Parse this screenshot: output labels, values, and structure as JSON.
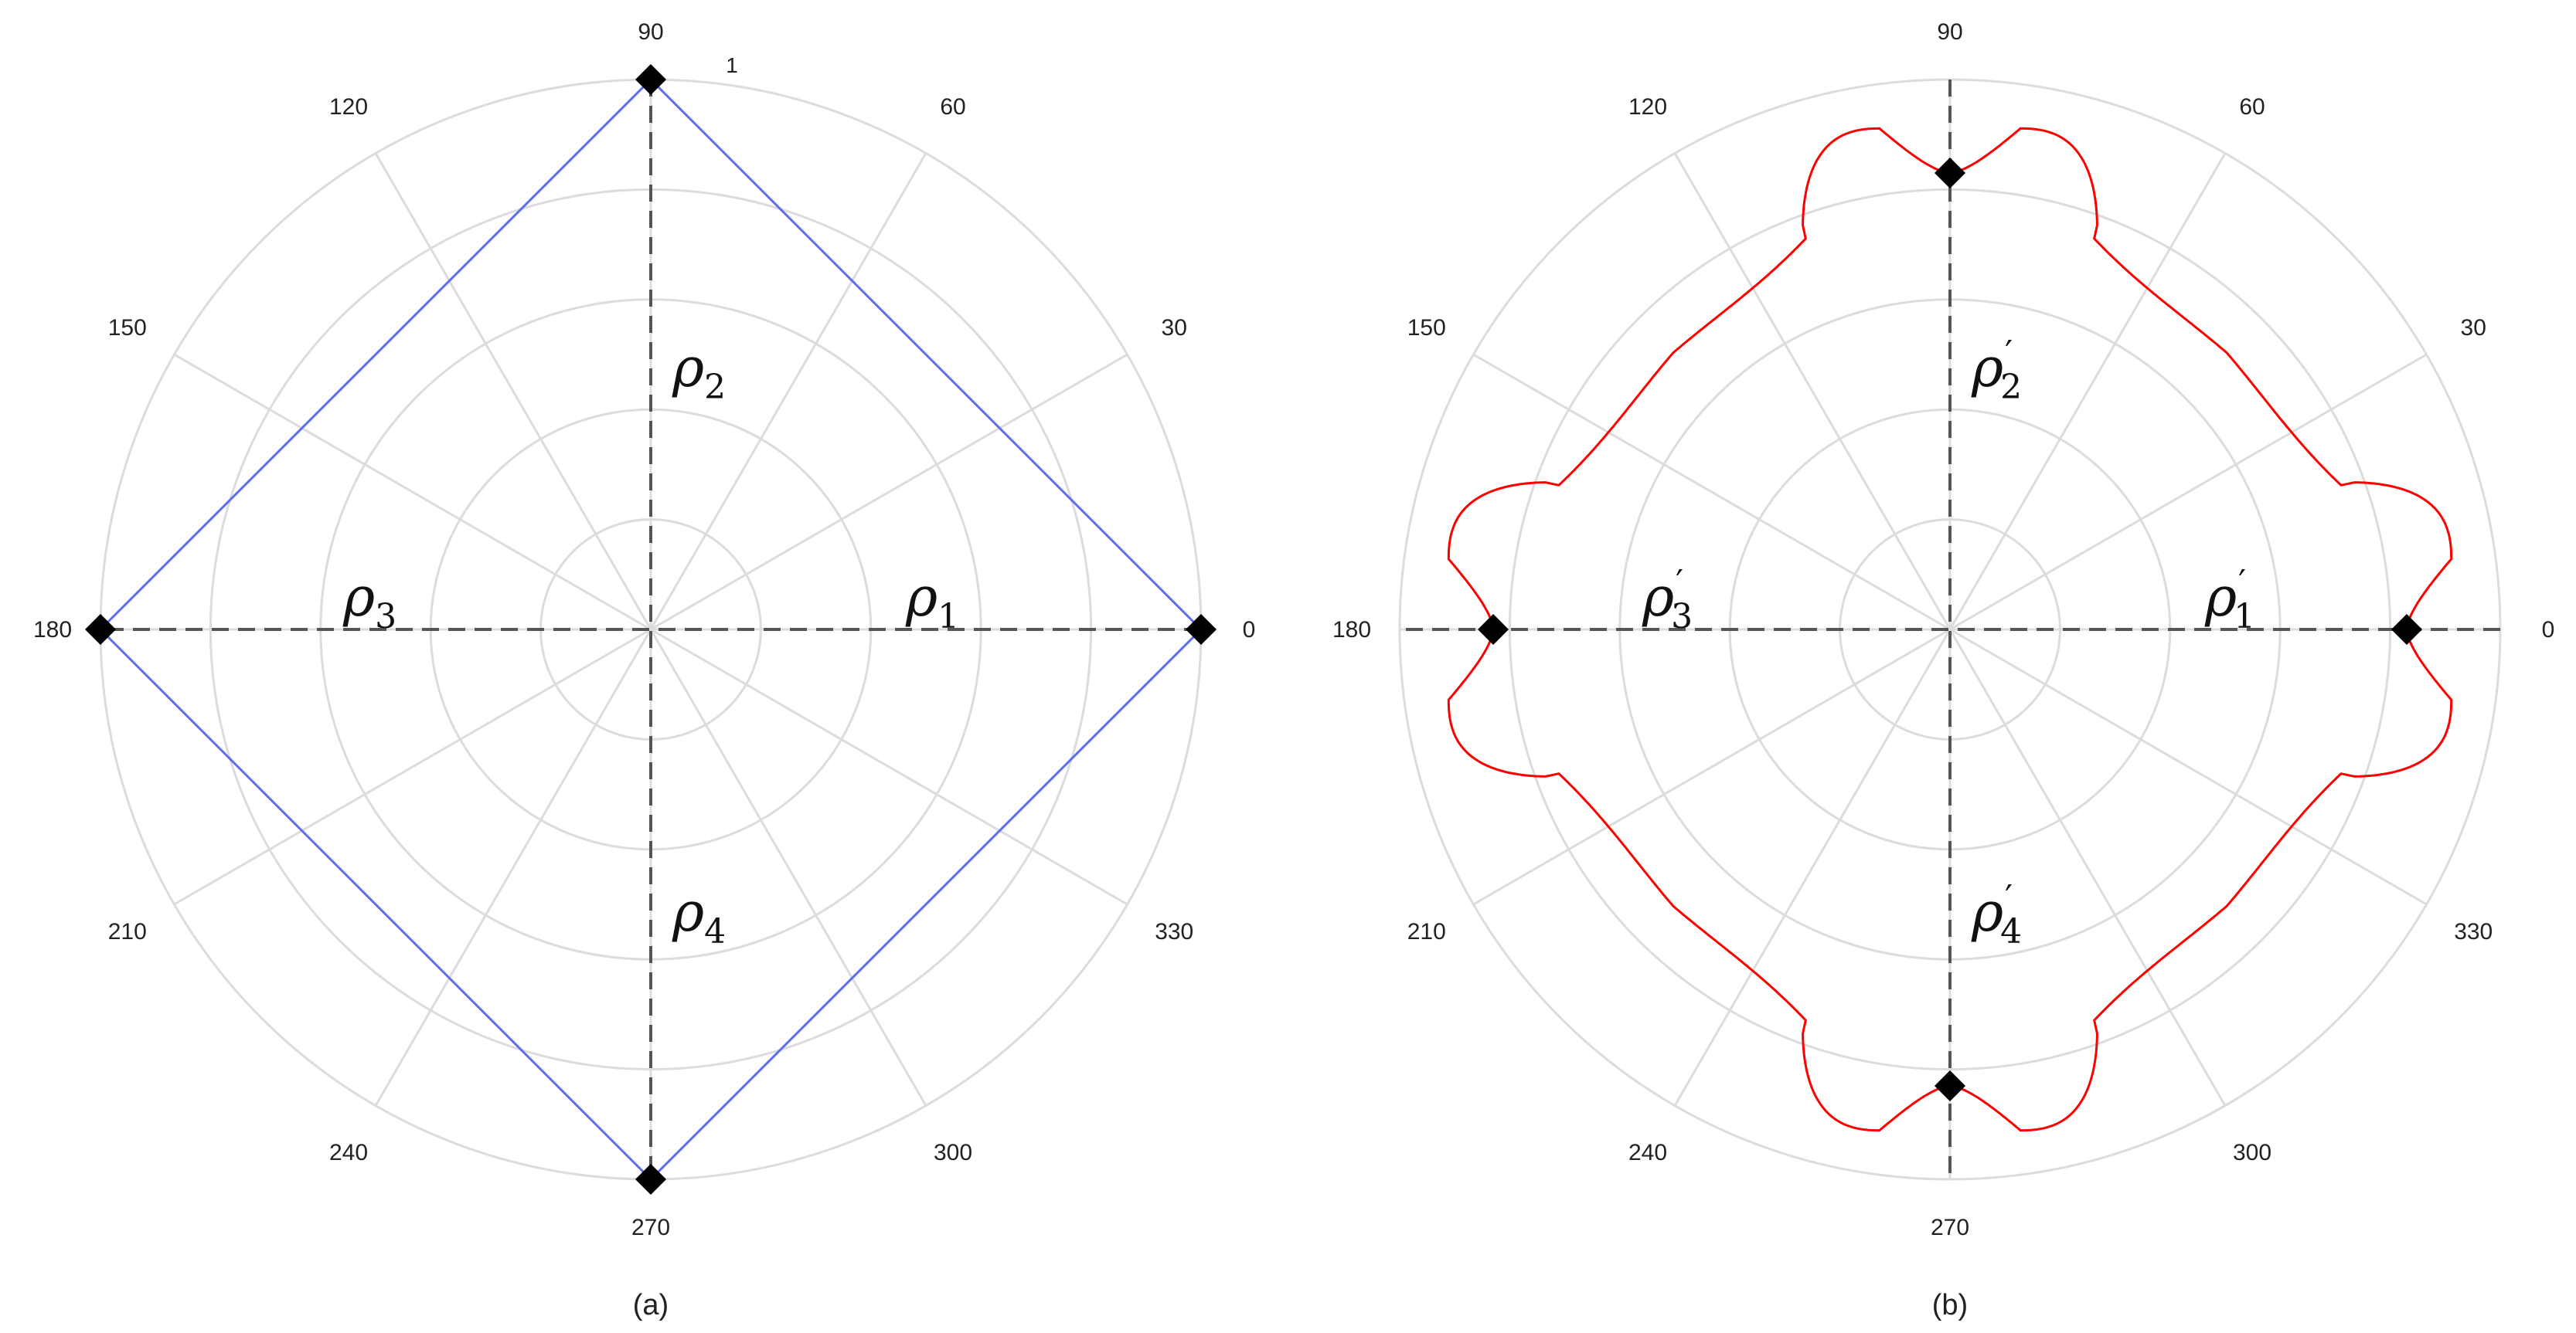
{
  "chart_data": [
    {
      "type": "polar-line",
      "caption": "(a)",
      "angle_ticks": [
        "0",
        "30",
        "60",
        "90",
        "120",
        "150",
        "180",
        "210",
        "240",
        "270",
        "300",
        "330"
      ],
      "angle_tick_values": [
        0,
        30,
        60,
        90,
        120,
        150,
        180,
        210,
        240,
        270,
        300,
        330
      ],
      "radial_ticks": [
        0.2,
        0.4,
        0.6,
        0.8,
        1.0
      ],
      "radial_tick_label": "1",
      "rlim": [
        0,
        1
      ],
      "grid": true,
      "series": [
        {
          "color": "#5b6df0",
          "curve": "diamond",
          "points": [
            [
              0,
              1
            ],
            [
              90,
              1
            ],
            [
              180,
              1
            ],
            [
              270,
              1
            ]
          ]
        }
      ],
      "markers": [
        [
          0,
          1
        ],
        [
          90,
          1
        ],
        [
          180,
          1
        ],
        [
          270,
          1
        ]
      ],
      "annotations": [
        {
          "base": "ρ",
          "sub": "1",
          "prime": false,
          "angle": 0
        },
        {
          "base": "ρ",
          "sub": "2",
          "prime": false,
          "angle": 90
        },
        {
          "base": "ρ",
          "sub": "3",
          "prime": false,
          "angle": 180
        },
        {
          "base": "ρ",
          "sub": "4",
          "prime": false,
          "angle": 270
        }
      ]
    },
    {
      "type": "polar-line",
      "caption": "(b)",
      "angle_ticks": [
        "0",
        "30",
        "60",
        "90",
        "120",
        "150",
        "180",
        "210",
        "240",
        "270",
        "300",
        "330"
      ],
      "angle_tick_values": [
        0,
        30,
        60,
        90,
        120,
        150,
        180,
        210,
        240,
        270,
        300,
        330
      ],
      "radial_ticks": [
        0.2,
        0.4,
        0.6,
        0.8,
        1.0
      ],
      "rlim": [
        0,
        1
      ],
      "grid": true,
      "series": [
        {
          "color": "#ff0000",
          "curve": "cusped-square",
          "center_r": 0.83,
          "cusp_r": 0.92,
          "cusp_offset_deg": 8
        }
      ],
      "markers": [
        [
          0,
          0.83
        ],
        [
          90,
          0.83
        ],
        [
          180,
          0.83
        ],
        [
          270,
          0.83
        ]
      ],
      "annotations": [
        {
          "base": "ρ",
          "sub": "1",
          "prime": true,
          "angle": 0
        },
        {
          "base": "ρ",
          "sub": "2",
          "prime": true,
          "angle": 90
        },
        {
          "base": "ρ",
          "sub": "3",
          "prime": true,
          "angle": 180
        },
        {
          "base": "ρ",
          "sub": "4",
          "prime": true,
          "angle": 270
        }
      ]
    }
  ]
}
